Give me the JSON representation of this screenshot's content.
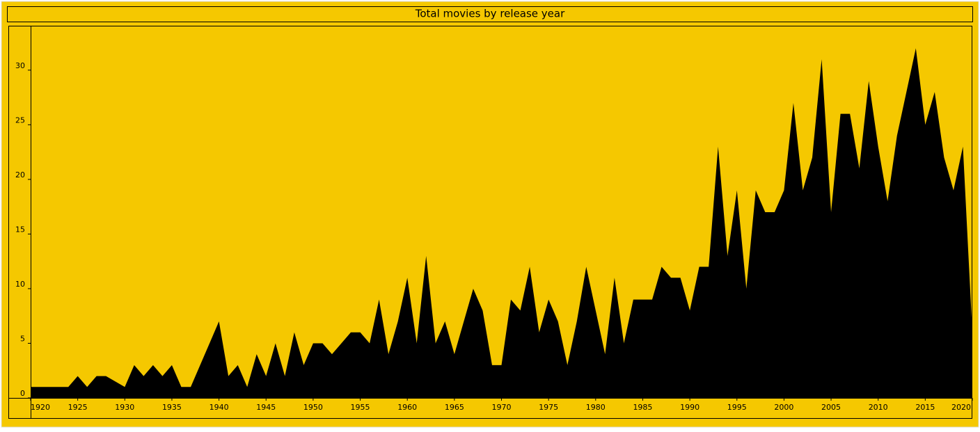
{
  "chart_data": {
    "type": "area",
    "title": "Total movies by release year",
    "x": [
      1920,
      1921,
      1922,
      1923,
      1924,
      1925,
      1926,
      1927,
      1928,
      1930,
      1931,
      1932,
      1933,
      1934,
      1935,
      1936,
      1937,
      1938,
      1939,
      1940,
      1941,
      1942,
      1943,
      1944,
      1945,
      1946,
      1947,
      1948,
      1949,
      1950,
      1951,
      1952,
      1953,
      1954,
      1955,
      1956,
      1957,
      1958,
      1959,
      1960,
      1961,
      1962,
      1963,
      1964,
      1965,
      1966,
      1967,
      1968,
      1969,
      1970,
      1971,
      1972,
      1973,
      1974,
      1975,
      1976,
      1977,
      1978,
      1979,
      1980,
      1981,
      1982,
      1983,
      1984,
      1985,
      1986,
      1987,
      1988,
      1989,
      1990,
      1991,
      1992,
      1993,
      1994,
      1995,
      1996,
      1997,
      1998,
      1999,
      2000,
      2001,
      2002,
      2003,
      2004,
      2005,
      2006,
      2007,
      2008,
      2009,
      2010,
      2011,
      2012,
      2013,
      2014,
      2015,
      2016,
      2017,
      2018,
      2019,
      2020
    ],
    "values": [
      1,
      1,
      1,
      1,
      1,
      2,
      1,
      2,
      2,
      1,
      3,
      2,
      3,
      2,
      3,
      1,
      1,
      3,
      5,
      7,
      2,
      3,
      1,
      4,
      2,
      5,
      2,
      6,
      3,
      5,
      5,
      4,
      5,
      6,
      6,
      5,
      9,
      4,
      7,
      11,
      5,
      13,
      5,
      7,
      4,
      7,
      10,
      8,
      3,
      3,
      9,
      8,
      12,
      6,
      9,
      7,
      3,
      7,
      12,
      8,
      4,
      11,
      5,
      9,
      9,
      9,
      12,
      11,
      11,
      8,
      12,
      12,
      23,
      13,
      19,
      10,
      19,
      17,
      17,
      19,
      27,
      19,
      22,
      31,
      17,
      26,
      26,
      21,
      29,
      23,
      18,
      24,
      28,
      32,
      25,
      28,
      22,
      19,
      23,
      6
    ],
    "color": "#000000",
    "xlim": [
      1920,
      2020
    ],
    "xticks": [
      1920,
      1925,
      1930,
      1935,
      1940,
      1945,
      1950,
      1955,
      1960,
      1965,
      1970,
      1975,
      1980,
      1985,
      1990,
      1995,
      2000,
      2005,
      2010,
      2015,
      2020
    ],
    "ylim": [
      0,
      34
    ],
    "yticks": [
      0,
      5,
      10,
      15,
      20,
      25,
      30
    ]
  }
}
